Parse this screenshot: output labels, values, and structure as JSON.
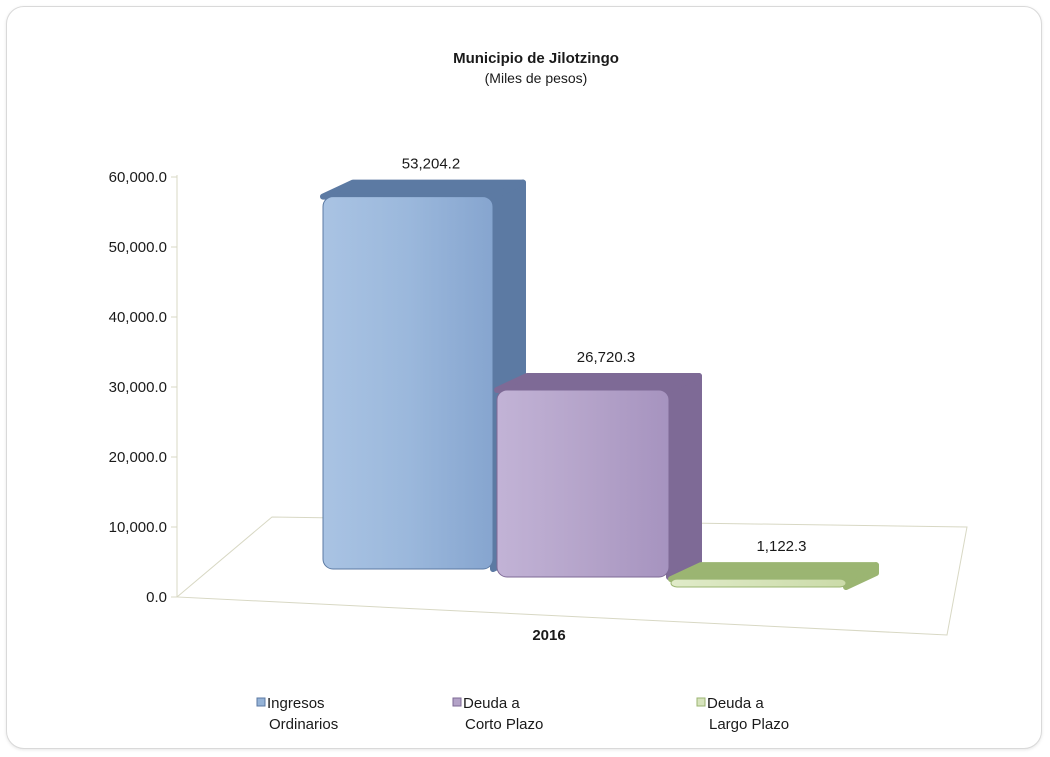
{
  "chart_data": {
    "type": "bar",
    "title": "Municipio de Jilotzingo",
    "subtitle": "(Miles de pesos)",
    "categories": [
      "2016"
    ],
    "series": [
      {
        "name": "Ingresos Ordinarios",
        "legend_lines": [
          "Ingresos",
          "Ordinarios"
        ],
        "values": [
          53204.2
        ],
        "value_label": "53,204.2",
        "color": "#95b3d7",
        "side_color": "#5c7aa3"
      },
      {
        "name": "Deuda a Corto Plazo",
        "legend_lines": [
          "Deuda a",
          "Corto Plazo"
        ],
        "values": [
          26720.3
        ],
        "value_label": "26,720.3",
        "color": "#b3a2c7",
        "side_color": "#7e6a96"
      },
      {
        "name": "Deuda a Largo Plazo",
        "legend_lines": [
          "Deuda a",
          "Largo Plazo"
        ],
        "values": [
          1122.3
        ],
        "value_label": "1,122.3",
        "color": "#d7e4bd",
        "side_color": "#9bb572"
      }
    ],
    "yticks": [
      {
        "value": 0,
        "label": "0.0"
      },
      {
        "value": 10000,
        "label": "10,000.0"
      },
      {
        "value": 20000,
        "label": "20,000.0"
      },
      {
        "value": 30000,
        "label": "30,000.0"
      },
      {
        "value": 40000,
        "label": "40,000.0"
      },
      {
        "value": 50000,
        "label": "50,000.0"
      },
      {
        "value": 60000,
        "label": "60,000.0"
      }
    ],
    "ylim": [
      0,
      60000
    ],
    "grid": false,
    "legend_position": "bottom"
  }
}
